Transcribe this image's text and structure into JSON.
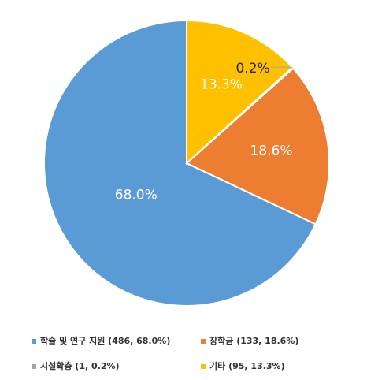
{
  "chart_data": {
    "type": "pie",
    "title": "",
    "series": [
      {
        "name": "학술 및 연구 지원",
        "value": 486,
        "percent": 68.0,
        "label": "68.0%",
        "legend": "학술 및 연구 지원 (486, 68.0%)",
        "color": "#5B9BD5"
      },
      {
        "name": "장학금",
        "value": 133,
        "percent": 18.6,
        "label": "18.6%",
        "legend": "장학금 (133, 18.6%)",
        "color": "#ED7D31"
      },
      {
        "name": "시설확충",
        "value": 1,
        "percent": 0.2,
        "label": "0.2%",
        "legend": "시설확충 (1, 0.2%)",
        "color": "#A5A5A5"
      },
      {
        "name": "기타",
        "value": 95,
        "percent": 13.3,
        "label": "13.3%",
        "legend": "기타 (95, 13.3%)",
        "color": "#FFC000"
      }
    ],
    "start_angle": "12 o'clock",
    "direction": "clockwise",
    "legend_position": "bottom"
  }
}
